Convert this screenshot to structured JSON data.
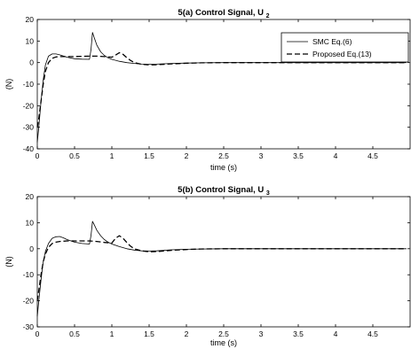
{
  "chart_data": [
    {
      "type": "line",
      "title_main": "5(a) Control Signal, U",
      "title_sub": "2",
      "xlabel": "time (s)",
      "ylabel": "(N)",
      "xlim": [
        0,
        5
      ],
      "ylim": [
        -40,
        20
      ],
      "xticks": [
        0,
        0.5,
        1,
        1.5,
        2,
        2.5,
        3,
        3.5,
        4,
        4.5
      ],
      "xtick_labels": [
        "0",
        "0.5",
        "1",
        "1.5",
        "2",
        "2.5",
        "3",
        "3.5",
        "4",
        "4.5"
      ],
      "yticks": [
        -40,
        -30,
        -20,
        -10,
        0,
        10,
        20
      ],
      "ytick_labels": [
        "-40",
        "-30",
        "-20",
        "-10",
        "0",
        "10",
        "20"
      ],
      "grid": false,
      "legend": "top-right",
      "series": [
        {
          "name": "SMC Eq.(6)",
          "style": "solid",
          "x": [
            0,
            0.02,
            0.05,
            0.08,
            0.11,
            0.15,
            0.2,
            0.25,
            0.3,
            0.4,
            0.5,
            0.6,
            0.7,
            0.72,
            0.74,
            0.76,
            0.8,
            0.85,
            0.9,
            0.95,
            1.0,
            1.1,
            1.2,
            1.3,
            1.4,
            1.5,
            1.6,
            1.8,
            2.0,
            2.2,
            2.5,
            3.0,
            4.95
          ],
          "y": [
            -37,
            -30,
            -18,
            -8,
            -1,
            3,
            4,
            4,
            3.6,
            2.5,
            1.8,
            1.6,
            1.5,
            6,
            14,
            12,
            8,
            5,
            3.3,
            2.2,
            1.5,
            0.6,
            0,
            -0.4,
            -0.7,
            -0.8,
            -0.7,
            -0.4,
            -0.2,
            -0.1,
            0,
            0,
            0
          ]
        },
        {
          "name": "Proposed Eq.(13)",
          "style": "dashed",
          "x": [
            0,
            0.02,
            0.05,
            0.08,
            0.11,
            0.15,
            0.2,
            0.25,
            0.3,
            0.4,
            0.5,
            0.6,
            0.7,
            0.8,
            0.9,
            1.0,
            1.05,
            1.1,
            1.15,
            1.2,
            1.25,
            1.3,
            1.4,
            1.5,
            1.6,
            1.8,
            2.0,
            2.2,
            2.5,
            3.0,
            4.95
          ],
          "y": [
            -30,
            -26,
            -18,
            -10,
            -4,
            0,
            2,
            2.6,
            2.8,
            2.8,
            2.8,
            2.9,
            3,
            3,
            2.8,
            2.5,
            3.5,
            4.6,
            3.8,
            2.3,
            1,
            0,
            -0.8,
            -1.1,
            -1,
            -0.6,
            -0.3,
            -0.1,
            0,
            0,
            0
          ]
        }
      ]
    },
    {
      "type": "line",
      "title_main": "5(b) Control Signal, U",
      "title_sub": "3",
      "xlabel": "time (s)",
      "ylabel": "(N)",
      "xlim": [
        0,
        5
      ],
      "ylim": [
        -30,
        20
      ],
      "xticks": [
        0,
        0.5,
        1,
        1.5,
        2,
        2.5,
        3,
        3.5,
        4,
        4.5
      ],
      "xtick_labels": [
        "0",
        "0.5",
        "1",
        "1.5",
        "2",
        "2.5",
        "3",
        "3.5",
        "4",
        "4.5"
      ],
      "yticks": [
        -30,
        -20,
        -10,
        0,
        10,
        20
      ],
      "ytick_labels": [
        "-30",
        "-20",
        "-10",
        "0",
        "10",
        "20"
      ],
      "grid": false,
      "series": [
        {
          "name": "",
          "style": "solid",
          "x": [
            0,
            0.02,
            0.05,
            0.08,
            0.11,
            0.15,
            0.2,
            0.25,
            0.3,
            0.35,
            0.4,
            0.5,
            0.6,
            0.7,
            0.72,
            0.74,
            0.76,
            0.8,
            0.85,
            0.9,
            0.95,
            1.0,
            1.1,
            1.2,
            1.3,
            1.4,
            1.5,
            1.6,
            1.8,
            2.0,
            2.2,
            2.5,
            3.0,
            4.95
          ],
          "y": [
            -26,
            -20,
            -12,
            -5,
            -1,
            2,
            4,
            4.6,
            4.7,
            4.2,
            3.5,
            2.5,
            2,
            1.8,
            5,
            10.5,
            9.5,
            7,
            5,
            3.5,
            2.5,
            1.8,
            0.8,
            0,
            -0.5,
            -0.8,
            -0.9,
            -0.8,
            -0.4,
            -0.2,
            -0.1,
            0,
            0,
            0
          ]
        },
        {
          "name": "",
          "style": "dashed",
          "x": [
            0,
            0.02,
            0.05,
            0.08,
            0.11,
            0.15,
            0.2,
            0.25,
            0.3,
            0.4,
            0.5,
            0.6,
            0.7,
            0.8,
            0.9,
            1.0,
            1.05,
            1.1,
            1.15,
            1.2,
            1.25,
            1.3,
            1.4,
            1.5,
            1.6,
            1.8,
            2.0,
            2.2,
            2.5,
            3.0,
            4.95
          ],
          "y": [
            -20,
            -16,
            -10,
            -5,
            -2,
            0.5,
            2,
            2.5,
            2.8,
            3,
            3,
            3,
            3,
            2.8,
            2.4,
            2.2,
            4,
            5,
            4,
            2.4,
            1,
            0,
            -0.8,
            -1.2,
            -1.1,
            -0.6,
            -0.3,
            -0.1,
            0,
            0,
            0
          ]
        }
      ]
    }
  ]
}
